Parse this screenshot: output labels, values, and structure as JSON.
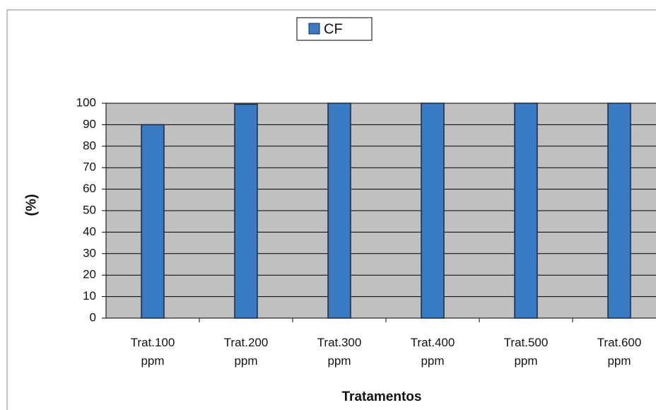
{
  "chart_data": {
    "type": "bar",
    "categories": [
      "Trat.100 ppm",
      "Trat.200 ppm",
      "Trat.300 ppm",
      "Trat.400 ppm",
      "Trat.500 ppm",
      "Trat.600 ppm"
    ],
    "series": [
      {
        "name": "CF",
        "color": "#3a7cc4",
        "values": [
          90,
          99.5,
          100,
          100,
          100,
          100
        ]
      }
    ],
    "ylim": [
      0,
      100
    ],
    "yticks": [
      0,
      10,
      20,
      30,
      40,
      50,
      60,
      70,
      80,
      90,
      100
    ],
    "ylabel": "(%)",
    "xlabel": "Tratamentos",
    "grid": true,
    "legend": "top"
  }
}
